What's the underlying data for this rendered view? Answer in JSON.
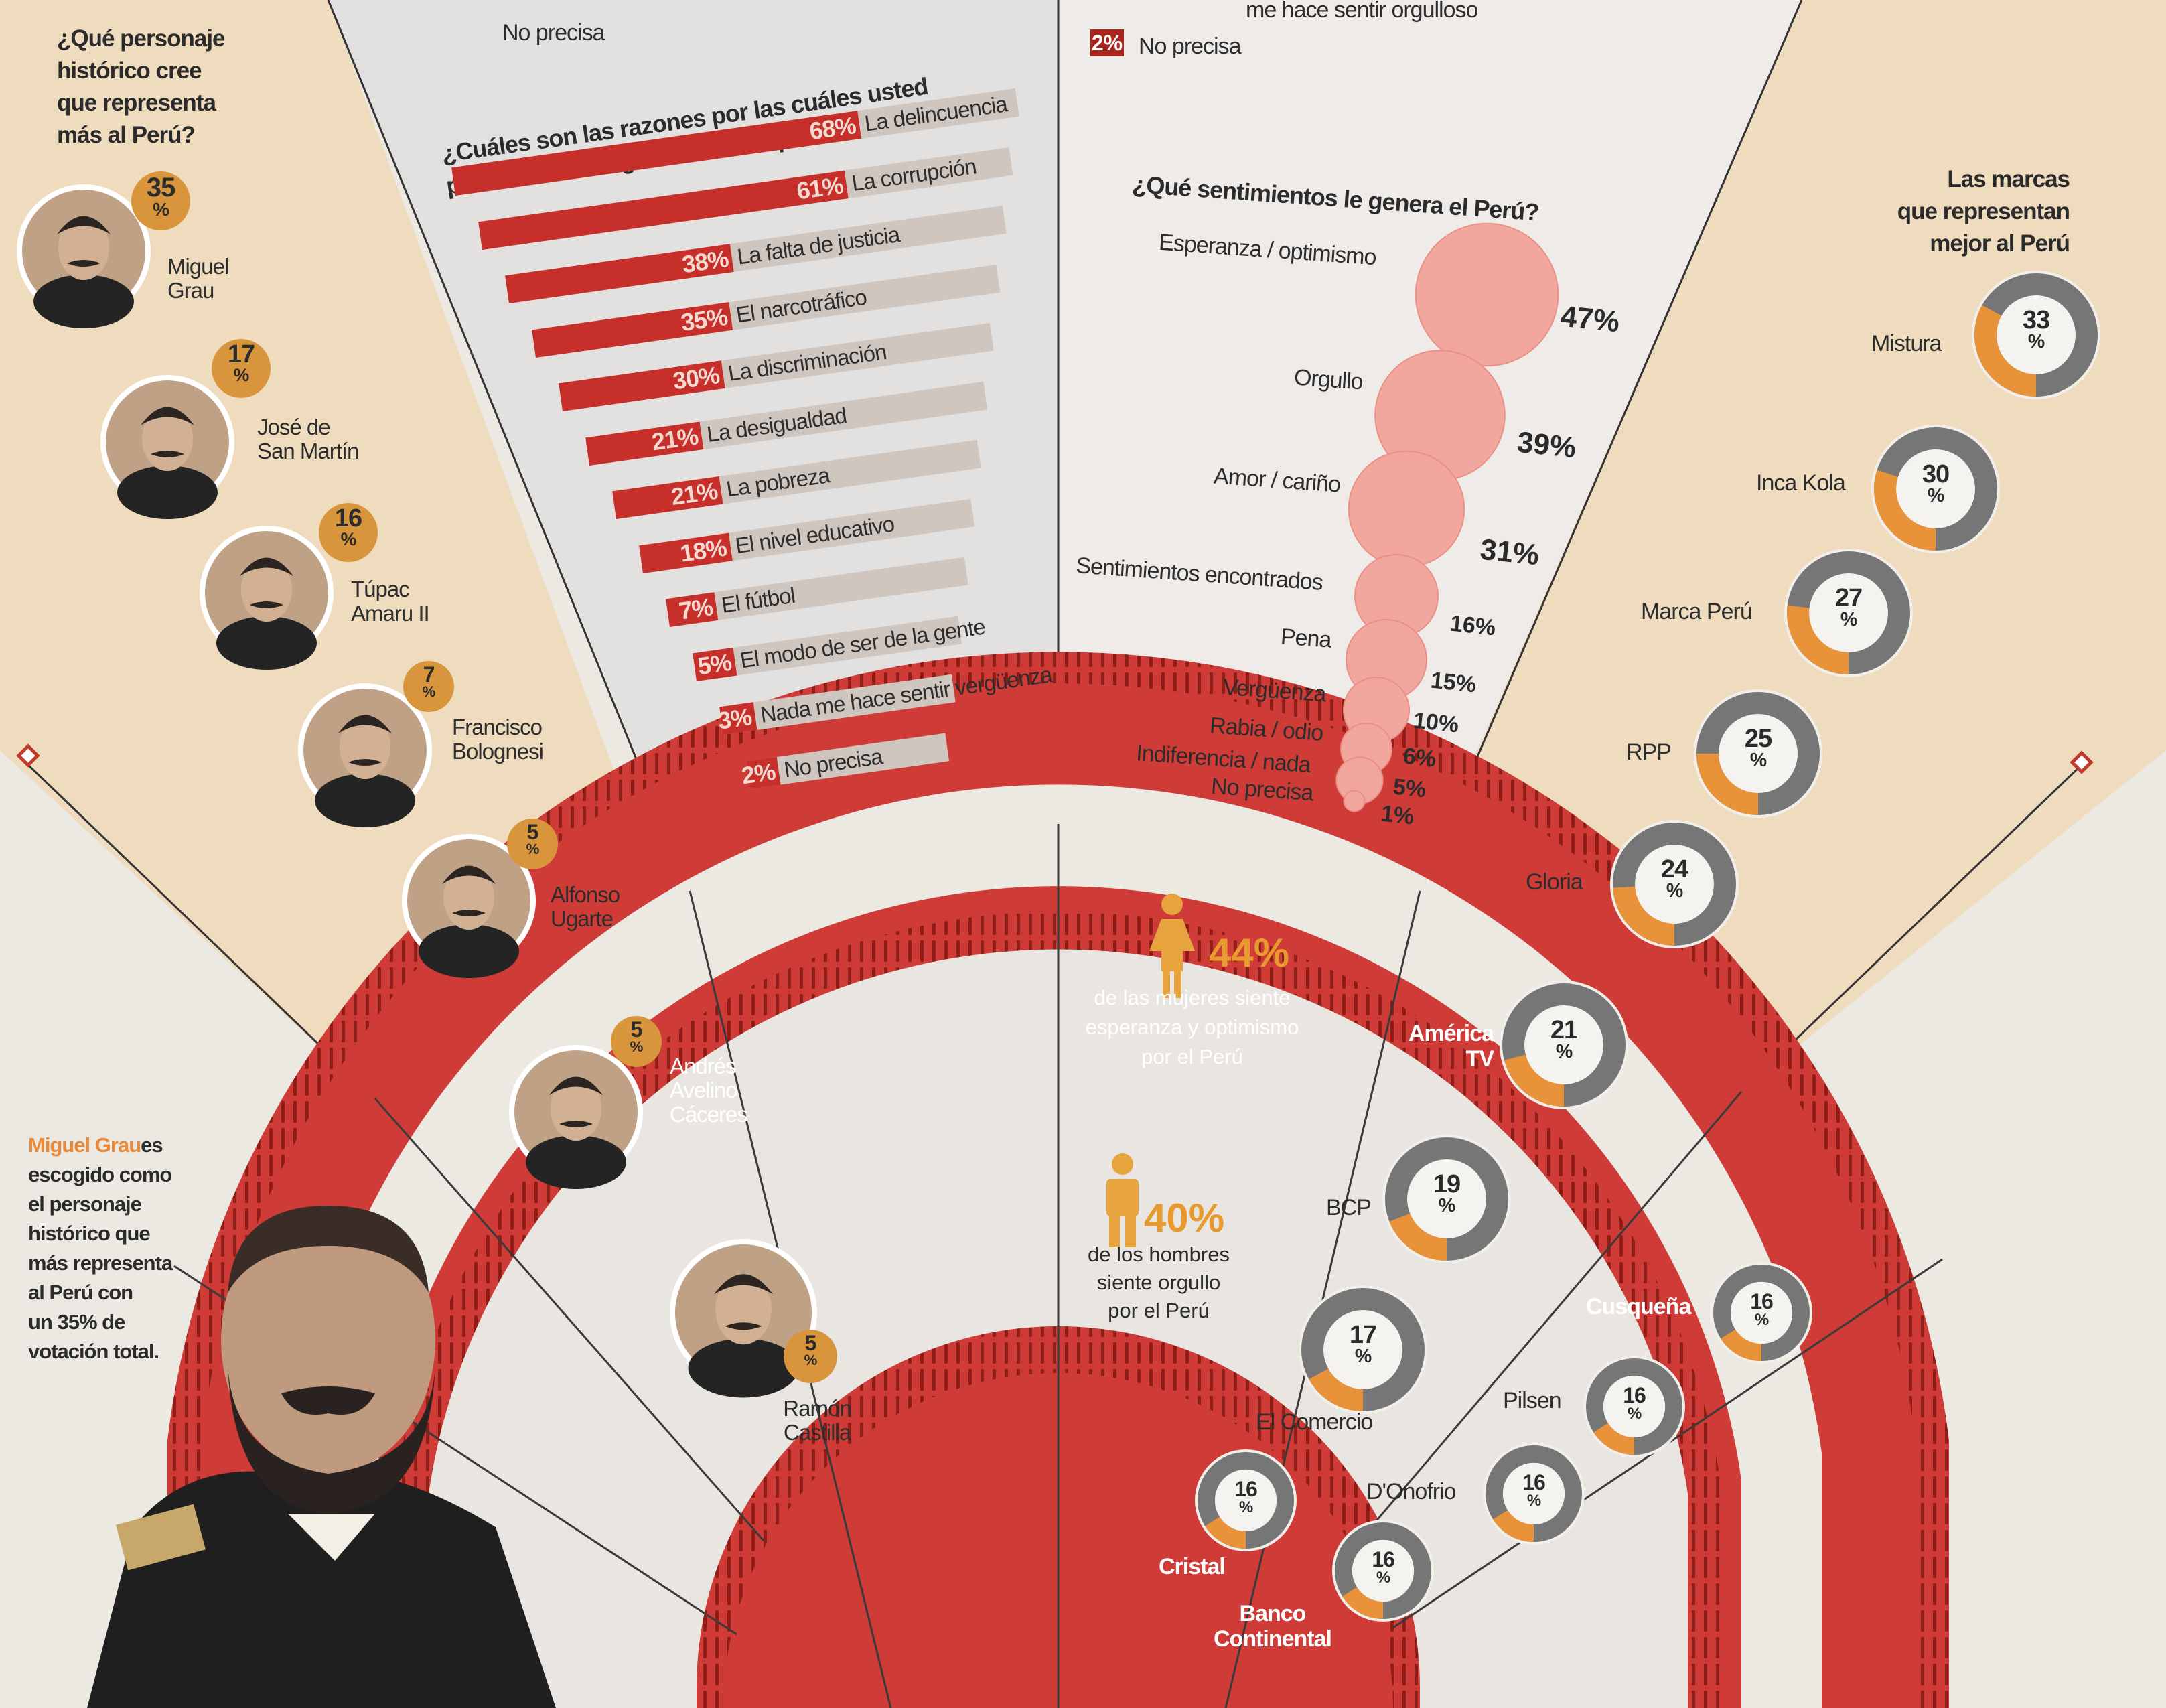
{
  "colors": {
    "red": "#cf3b37",
    "darkred": "#a9261f",
    "gold": "#d99a3c",
    "tan": "#efdcbf",
    "grey": "#777777",
    "pink": "#f4a9a2"
  },
  "partial_top": {
    "left_no_precisa": "No precisa",
    "right_partial": "me hace sentir orgulloso",
    "right_pct": "2%",
    "right_no_precisa": "No precisa"
  },
  "personajes": {
    "question": [
      "¿Qué personaje",
      "histórico cree",
      "que representa",
      "más al Perú?"
    ],
    "items": [
      {
        "name": [
          "Miguel",
          "Grau"
        ],
        "pct": "35"
      },
      {
        "name": [
          "José de",
          "San Martín"
        ],
        "pct": "17"
      },
      {
        "name": [
          "Túpac",
          "Amaru II"
        ],
        "pct": "16"
      },
      {
        "name": [
          "Francisco",
          "Bolognesi"
        ],
        "pct": "7"
      },
      {
        "name": [
          "Alfonso",
          "Ugarte"
        ],
        "pct": "5"
      },
      {
        "name": [
          "Andrés",
          "Avelino",
          "Cáceres"
        ],
        "pct": "5"
      },
      {
        "name": [
          "Ramón",
          "Castilla"
        ],
        "pct": "5"
      }
    ],
    "pct_sign": "%",
    "note_name": "Miguel Grau",
    "note_rest": [
      "es",
      "escogido como",
      "el personaje",
      "histórico que",
      "más representa",
      "al Perú con",
      "un 35% de",
      "votación total."
    ]
  },
  "verguenza": {
    "question": [
      "¿Cuáles son las razones por las cuáles usted",
      "puede sentir vergüenza de ser peruano?"
    ],
    "items": [
      {
        "pct": "68%",
        "label": "La delincuencia",
        "value": 68
      },
      {
        "pct": "61%",
        "label": "La corrupción",
        "value": 61
      },
      {
        "pct": "38%",
        "label": "La falta de justicia",
        "value": 38
      },
      {
        "pct": "35%",
        "label": "El narcotráfico",
        "value": 35
      },
      {
        "pct": "30%",
        "label": "La discriminación",
        "value": 30
      },
      {
        "pct": "21%",
        "label": "La desigualdad",
        "value": 21
      },
      {
        "pct": "21%",
        "label": "La pobreza",
        "value": 21
      },
      {
        "pct": "18%",
        "label": "El nivel educativo",
        "value": 18
      },
      {
        "pct": "7%",
        "label": "El fútbol",
        "value": 7
      },
      {
        "pct": "5%",
        "label": "El modo de ser de la gente",
        "value": 5
      },
      {
        "pct": "3%",
        "label": "Nada me hace sentir vergüenza",
        "value": 3
      },
      {
        "pct": "2%",
        "label": "No precisa",
        "value": 2
      }
    ]
  },
  "sentimientos": {
    "question": "¿Qué sentimientos le genera el Perú?",
    "items": [
      {
        "label": "Esperanza / optimismo",
        "pct": "47%",
        "value": 47
      },
      {
        "label": "Orgullo",
        "pct": "39%",
        "value": 39
      },
      {
        "label": "Amor / cariño",
        "pct": "31%",
        "value": 31
      },
      {
        "label": "Sentimientos encontrados",
        "pct": "16%",
        "value": 16
      },
      {
        "label": "Pena",
        "pct": "15%",
        "value": 15
      },
      {
        "label": "Vergüenza",
        "pct": "10%",
        "value": 10
      },
      {
        "label": "Rabia / odio",
        "pct": "6%",
        "value": 6
      },
      {
        "label": "Indiferencia / nada",
        "pct": "5%",
        "value": 5
      },
      {
        "label": "No precisa",
        "pct": "1%",
        "value": 1
      }
    ]
  },
  "genero": {
    "mujeres_pct": "44%",
    "mujeres_text": [
      "de las mujeres siente",
      "esperanza y optimismo",
      "por el Perú"
    ],
    "hombres_pct": "40%",
    "hombres_text": [
      "de los hombres",
      "siente orgullo",
      "por el Perú"
    ]
  },
  "marcas": {
    "question": [
      "Las marcas",
      "que representan",
      "mejor al Perú"
    ],
    "items": [
      {
        "name": [
          "Mistura"
        ],
        "value": 33
      },
      {
        "name": [
          "Inca Kola"
        ],
        "value": 30
      },
      {
        "name": [
          "Marca Perú"
        ],
        "value": 27
      },
      {
        "name": [
          "RPP"
        ],
        "value": 25
      },
      {
        "name": [
          "Gloria"
        ],
        "value": 24
      },
      {
        "name": [
          "América",
          "TV"
        ],
        "value": 21
      },
      {
        "name": [
          "BCP"
        ],
        "value": 19
      },
      {
        "name": [
          "El Comercio"
        ],
        "value": 17
      },
      {
        "name": [
          "Cusqueña"
        ],
        "value": 16
      },
      {
        "name": [
          "Pilsen"
        ],
        "value": 16
      },
      {
        "name": [
          "D'Onofrio"
        ],
        "value": 16
      },
      {
        "name": [
          "Cristal"
        ],
        "value": 16
      },
      {
        "name": [
          "Banco",
          "Continental"
        ],
        "value": 16
      }
    ],
    "pct_sign": "%"
  }
}
